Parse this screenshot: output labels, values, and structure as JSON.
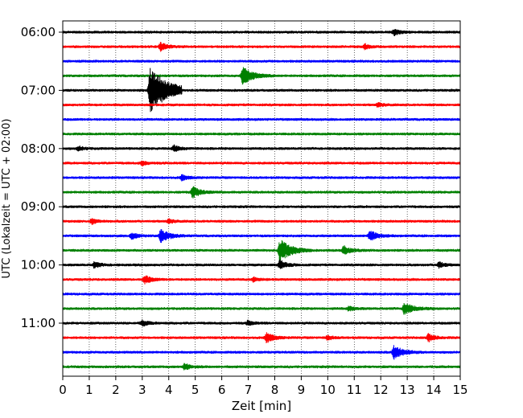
{
  "chart_data": {
    "type": "line",
    "title": "",
    "xlabel": "Zeit  [min]",
    "ylabel": "UTC (Lokalzeit = UTC + 02:00)",
    "xlim": [
      0,
      15
    ],
    "x_ticks": [
      "0",
      "1",
      "2",
      "3",
      "4",
      "5",
      "6",
      "7",
      "8",
      "9",
      "10",
      "11",
      "12",
      "13",
      "14",
      "15"
    ],
    "y_tick_labels": [
      "06:00",
      "07:00",
      "08:00",
      "09:00",
      "10:00",
      "11:00"
    ],
    "grid": {
      "x": true,
      "style": "dotted"
    },
    "row_interval_minutes": 15,
    "trace_colors": [
      "#000000",
      "#ff0000",
      "#0000ff",
      "#008000"
    ],
    "traces": [
      {
        "start": "06:00",
        "color": "#000000",
        "events": [
          {
            "t": 12.5,
            "amp": 0.4
          }
        ]
      },
      {
        "start": "06:15",
        "color": "#ff0000",
        "events": [
          {
            "t": 3.7,
            "amp": 0.55
          },
          {
            "t": 11.4,
            "amp": 0.35
          }
        ]
      },
      {
        "start": "06:30",
        "color": "#0000ff",
        "events": []
      },
      {
        "start": "06:45",
        "color": "#008000",
        "events": [
          {
            "t": 6.8,
            "amp": 1.2
          }
        ]
      },
      {
        "start": "07:00",
        "color": "#000000",
        "events": [
          {
            "t": 3.3,
            "amp": 3.0
          }
        ]
      },
      {
        "start": "07:15",
        "color": "#ff0000",
        "events": [
          {
            "t": 11.9,
            "amp": 0.3
          }
        ]
      },
      {
        "start": "07:30",
        "color": "#0000ff",
        "events": []
      },
      {
        "start": "07:45",
        "color": "#008000",
        "events": []
      },
      {
        "start": "08:00",
        "color": "#000000",
        "events": [
          {
            "t": 4.2,
            "amp": 0.4
          },
          {
            "t": 0.6,
            "amp": 0.3
          }
        ]
      },
      {
        "start": "08:15",
        "color": "#ff0000",
        "events": [
          {
            "t": 3.0,
            "amp": 0.3
          }
        ]
      },
      {
        "start": "08:30",
        "color": "#0000ff",
        "events": [
          {
            "t": 4.5,
            "amp": 0.35
          }
        ]
      },
      {
        "start": "08:45",
        "color": "#008000",
        "events": [
          {
            "t": 4.9,
            "amp": 0.75
          }
        ]
      },
      {
        "start": "09:00",
        "color": "#000000",
        "events": []
      },
      {
        "start": "09:15",
        "color": "#ff0000",
        "events": [
          {
            "t": 1.1,
            "amp": 0.35
          },
          {
            "t": 4.0,
            "amp": 0.3
          }
        ]
      },
      {
        "start": "09:30",
        "color": "#0000ff",
        "events": [
          {
            "t": 3.7,
            "amp": 0.9
          },
          {
            "t": 11.6,
            "amp": 0.75
          },
          {
            "t": 2.6,
            "amp": 0.45
          }
        ]
      },
      {
        "start": "09:45",
        "color": "#008000",
        "events": [
          {
            "t": 8.2,
            "amp": 1.5
          },
          {
            "t": 10.6,
            "amp": 0.6
          }
        ]
      },
      {
        "start": "10:00",
        "color": "#000000",
        "events": [
          {
            "t": 8.2,
            "amp": 0.6
          },
          {
            "t": 1.2,
            "amp": 0.4
          },
          {
            "t": 14.2,
            "amp": 0.4
          }
        ]
      },
      {
        "start": "10:15",
        "color": "#ff0000",
        "events": [
          {
            "t": 3.1,
            "amp": 0.55
          },
          {
            "t": 7.2,
            "amp": 0.3
          }
        ]
      },
      {
        "start": "10:30",
        "color": "#0000ff",
        "events": []
      },
      {
        "start": "10:45",
        "color": "#008000",
        "events": [
          {
            "t": 12.9,
            "amp": 0.85
          },
          {
            "t": 10.8,
            "amp": 0.3
          }
        ]
      },
      {
        "start": "11:00",
        "color": "#000000",
        "events": [
          {
            "t": 3.0,
            "amp": 0.4
          },
          {
            "t": 7.0,
            "amp": 0.3
          }
        ]
      },
      {
        "start": "11:15",
        "color": "#ff0000",
        "events": [
          {
            "t": 7.7,
            "amp": 0.65
          },
          {
            "t": 13.8,
            "amp": 0.5
          },
          {
            "t": 10.0,
            "amp": 0.3
          }
        ]
      },
      {
        "start": "11:30",
        "color": "#0000ff",
        "events": [
          {
            "t": 12.5,
            "amp": 0.95
          }
        ]
      },
      {
        "start": "11:45",
        "color": "#008000",
        "events": [
          {
            "t": 4.6,
            "amp": 0.4
          }
        ]
      }
    ]
  }
}
